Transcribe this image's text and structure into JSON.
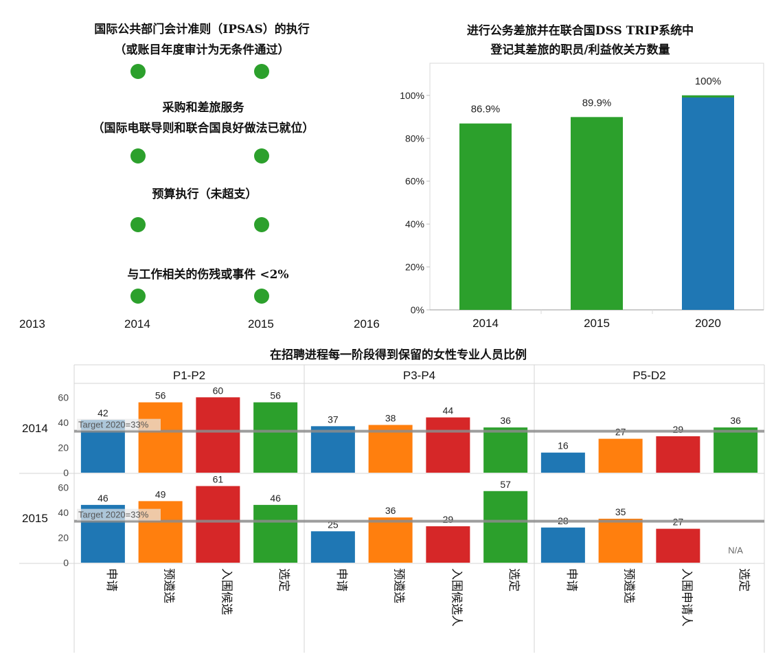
{
  "indicator_panel": {
    "indicators": [
      {
        "title_line1": "国际公共部门会计准则（IPSAS）的执行",
        "title_line2": "（或账目年度审计为无条件通过）",
        "status": "green"
      },
      {
        "title_line1": "采购和差旅服务",
        "title_line2": "（国际电联导则和联合国良好做法已就位）",
        "status": "green"
      },
      {
        "title_line1": "预算执行（未超支）",
        "title_line2": "",
        "status": "green"
      },
      {
        "title_line1": "与工作相关的伤残或事件 <2%",
        "title_line2": "",
        "status": "green"
      }
    ],
    "axis_years": [
      "2013",
      "2014",
      "2015",
      "2016"
    ],
    "dot_years": [
      "2014",
      "2015"
    ],
    "dot_color": "#2ca02c"
  },
  "colors": {
    "blue": "#1f77b4",
    "orange": "#ff7f0e",
    "red": "#d62728",
    "green": "#2ca02c",
    "target_line": "#8c8c8c"
  },
  "chart_data": [
    {
      "type": "bar",
      "title": "进行公务差旅并在联合国DSS TRIP系统中登记其差旅的职员/利益攸关方数量",
      "title_line1": "进行公务差旅并在联合国DSS TRIP系统中",
      "title_line2": "登记其差旅的职员/利益攸关方数量",
      "categories": [
        "2014",
        "2015",
        "2020"
      ],
      "values": [
        86.9,
        89.9,
        100
      ],
      "value_labels": [
        "86.9%",
        "89.9%",
        "100%"
      ],
      "bar_colors": [
        "#2ca02c",
        "#2ca02c",
        "#1f77b4"
      ],
      "ylim": [
        0,
        115
      ],
      "yticks": [
        0,
        20,
        40,
        60,
        80,
        100
      ],
      "ytick_labels": [
        "0%",
        "20%",
        "40%",
        "60%",
        "80%",
        "100%"
      ],
      "xlabel": "",
      "ylabel": "",
      "grid": false
    },
    {
      "type": "bar",
      "title": "在招聘进程每一阶段得到保留的女性专业人员比例",
      "groups": [
        "P1-P2",
        "P3-P4",
        "P5-D2"
      ],
      "rows": [
        "2014",
        "2015"
      ],
      "stage_labels": [
        [
          "申请",
          "预遴选",
          "入围候选",
          "选定"
        ],
        [
          "申请",
          "预遴选",
          "入围候选人",
          "选定"
        ],
        [
          "申请",
          "预遴选",
          "入围申请人",
          "选定"
        ]
      ],
      "stage_colors": [
        "#1f77b4",
        "#ff7f0e",
        "#d62728",
        "#2ca02c"
      ],
      "values": {
        "2014": [
          [
            42,
            56,
            60,
            56
          ],
          [
            37,
            38,
            44,
            36
          ],
          [
            16,
            27,
            29,
            36
          ]
        ],
        "2015": [
          [
            46,
            49,
            61,
            46
          ],
          [
            25,
            36,
            29,
            57
          ],
          [
            28,
            35,
            27,
            null
          ]
        ]
      },
      "missing_label": "N/A",
      "target": 33,
      "target_label": "Target 2020=33%",
      "ylim": [
        0,
        70
      ],
      "yticks": [
        0,
        20,
        40,
        60
      ],
      "ytick_labels": [
        "0",
        "20",
        "40",
        "60"
      ]
    }
  ]
}
